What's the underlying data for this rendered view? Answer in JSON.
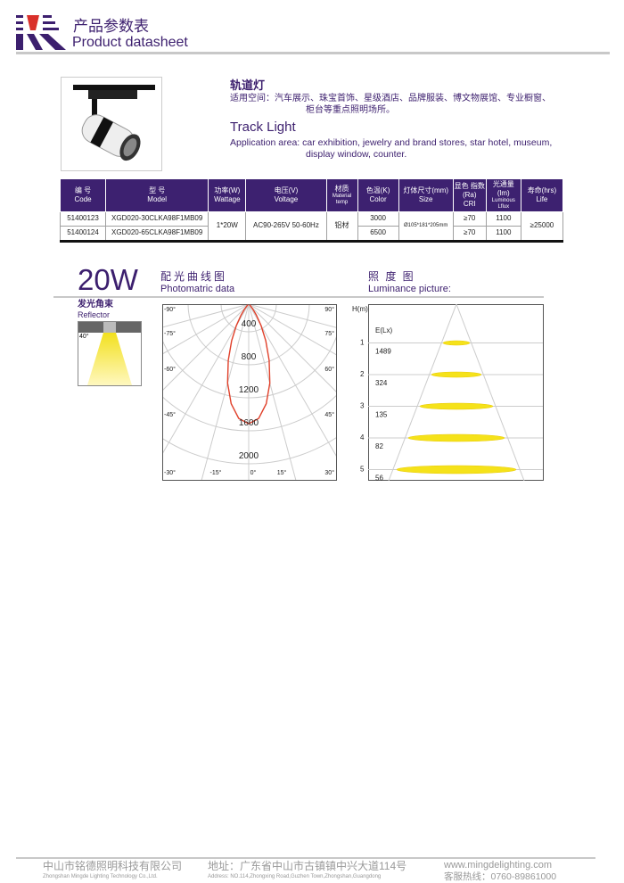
{
  "header": {
    "title_cn": "产品参数表",
    "title_en": "Product datasheet",
    "logo_colors": {
      "purple": "#3c1f6e",
      "red": "#d9302a"
    }
  },
  "product": {
    "name_cn": "轨道灯",
    "app_cn_1": "适用空间：汽车展示、珠宝首饰、星级酒店、品牌服装、博文物展馆、专业橱窗、",
    "app_cn_2": "柜台等重点照明场所。",
    "name_en": "Track Light",
    "app_en_1": "Application area: car exhibition, jewelry and brand stores, star hotel, museum,",
    "app_en_2": "display window, counter."
  },
  "table": {
    "headers": [
      [
        "编 号",
        "Code"
      ],
      [
        "型 号",
        "Model"
      ],
      [
        "功率(W)",
        "Wattage"
      ],
      [
        "电压(V)",
        "Voltage"
      ],
      [
        "材质",
        "Material temp"
      ],
      [
        "色温(K)",
        "Color"
      ],
      [
        "灯体尺寸(mm)",
        "Size"
      ],
      [
        "显色 指数 (Ra)",
        "CRI"
      ],
      [
        "光通量 (lm)",
        "Luminous Lflux"
      ],
      [
        "寿命(hrs)",
        "Life"
      ]
    ],
    "rows": [
      {
        "code": "51400123",
        "model": "XGD020-30CLKA98F1MB09",
        "color": "3000",
        "cri": "≥70",
        "flux": "1100"
      },
      {
        "code": "51400124",
        "model": "XGD020-65CLKA98F1MB09",
        "color": "6500",
        "cri": "≥70",
        "flux": "1100"
      }
    ],
    "shared": {
      "wattage": "1*20W",
      "voltage": "AC90-265V 50-60Hz",
      "material": "铝材",
      "size": "Ø105*181*205mm",
      "life": "≥25000"
    }
  },
  "section": {
    "power": "20W",
    "photometric_cn": "配光曲线图",
    "photometric_en": "Photomatric data",
    "luminance_cn": "照 度 图",
    "luminance_en": "Luminance picture:",
    "reflector_cn": "发光角束",
    "reflector_en": "Reflector",
    "beam_angle": "40°"
  },
  "chart_data": [
    {
      "type": "polar",
      "ring_labels": [
        "400",
        "800",
        "1200",
        "1600",
        "2000"
      ],
      "rings": [
        400,
        800,
        1200,
        1600,
        2000
      ],
      "angle_labels_left": [
        "-90°",
        "-75°",
        "-60°",
        "-45°",
        "-30°"
      ],
      "angle_labels_right": [
        "90°",
        "75°",
        "60°",
        "45°",
        "30°"
      ],
      "angle_labels_bottom": [
        "-15°",
        "0°",
        "15°",
        "30°"
      ],
      "curve_color": "#e0402a",
      "angles": [
        0,
        5,
        10,
        15,
        20,
        25,
        30,
        35,
        40,
        45,
        50
      ],
      "values": [
        1450,
        1390,
        1225,
        990,
        725,
        490,
        300,
        160,
        77,
        32,
        12
      ]
    },
    {
      "type": "luminance",
      "ylabel": "H(m)",
      "elabel": "E(Lx)",
      "heights": [
        1,
        2,
        3,
        4,
        5
      ],
      "lux": [
        1489,
        324,
        135,
        82,
        56
      ],
      "spot_color": "#f5e21a"
    }
  ],
  "footer": {
    "company_cn": "中山市铭德照明科技有限公司",
    "company_en": "Zhongshan Mingde Lighting Technology Co.,Ltd.",
    "address_cn": "地址：广东省中山市古镇镇中兴大道114号",
    "address_en": "Address: NO.114,Zhongxing Road,Guzhen Town,Zhongshan,Guangdong",
    "website": "www.mingdelighting.com",
    "hotline": "客服热线：0760-89861000"
  }
}
